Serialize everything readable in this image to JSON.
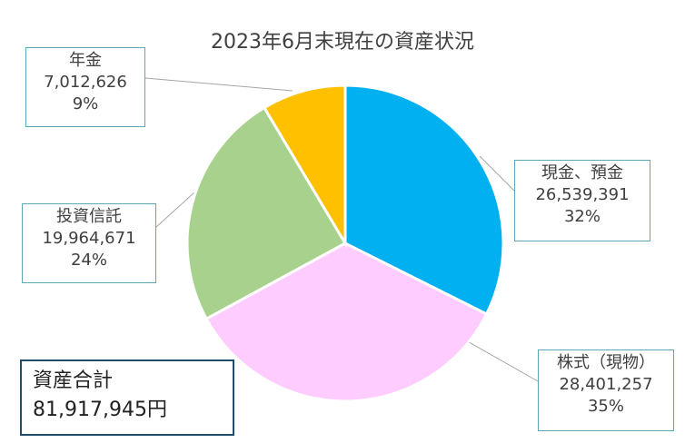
{
  "chart_data": {
    "type": "pie",
    "title": "2023年6月末現在の資産状況",
    "slices": [
      {
        "name": "現金、預金",
        "value": 26539391,
        "value_label": "26,539,391",
        "percent_label": "32%",
        "color": "#00b0f0"
      },
      {
        "name": "株式（現物）",
        "value": 28401257,
        "value_label": "28,401,257",
        "percent_label": "35%",
        "color": "#ffccff"
      },
      {
        "name": "投資信託",
        "value": 19964671,
        "value_label": "19,964,671",
        "percent_label": "24%",
        "color": "#a9d18e"
      },
      {
        "name": "年金",
        "value": 7012626,
        "value_label": "7,012,626",
        "percent_label": "9%",
        "color": "#ffc000"
      }
    ]
  },
  "total": {
    "label": "資産合計",
    "value": "81,917,945円"
  }
}
